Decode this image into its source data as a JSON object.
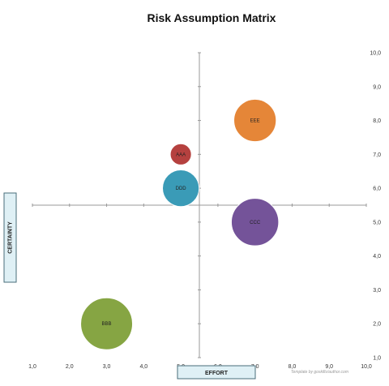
{
  "chart_data": {
    "type": "bubble",
    "title": "Risk Assumption Matrix",
    "xlabel": "EFFORT",
    "ylabel": "CERTAINTY",
    "xlim": [
      1,
      10
    ],
    "ylim": [
      1,
      10
    ],
    "crossing": {
      "x": 5.5,
      "y": 5.5
    },
    "x_ticks": [
      "1,0",
      "2,0",
      "3,0",
      "4,0",
      "5,0",
      "6,0",
      "7,0",
      "8,0",
      "9,0",
      "10,0"
    ],
    "y_ticks": [
      "1,0",
      "2,0",
      "3,0",
      "4,0",
      "5,0",
      "6,0",
      "7,0",
      "8,0",
      "9,0",
      "10,0"
    ],
    "grid": false,
    "series": [
      {
        "name": "AAA",
        "x": 5.0,
        "y": 7.0,
        "size": 1.0,
        "color": "#b5413f"
      },
      {
        "name": "BBB",
        "x": 3.0,
        "y": 2.0,
        "size": 6.0,
        "color": "#86a543"
      },
      {
        "name": "CCC",
        "x": 7.0,
        "y": 5.0,
        "size": 5.0,
        "color": "#745399"
      },
      {
        "name": "DDD",
        "x": 5.0,
        "y": 6.0,
        "size": 3.0,
        "color": "#3a9bb7"
      },
      {
        "name": "EEE",
        "x": 7.0,
        "y": 8.0,
        "size": 4.0,
        "color": "#e58638"
      }
    ],
    "credit": "Template by goskills/author.com"
  },
  "colors": {
    "axis": "#999999",
    "label_box_fill": "#dff0f5",
    "label_box_stroke": "#4a6e7a"
  }
}
